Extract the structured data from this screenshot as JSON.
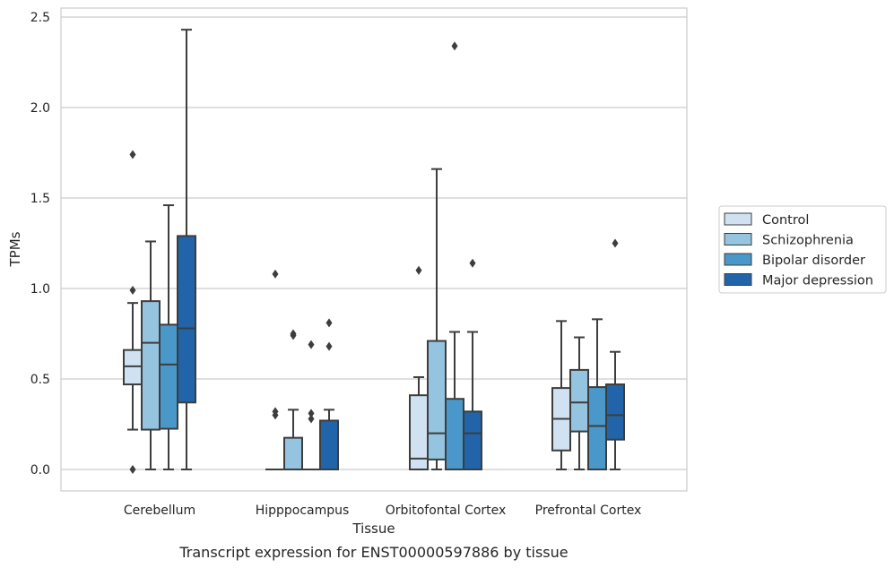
{
  "caption": "Transcript expression for ENST00000597886 by tissue",
  "chart_data": {
    "type": "box",
    "xlabel": "Tissue",
    "ylabel": "TPMs",
    "ylim": [
      -0.12,
      2.56
    ],
    "yticks": [
      "0.0",
      "0.5",
      "1.0",
      "1.5",
      "2.0",
      "2.5"
    ],
    "grid": "horizontal",
    "legend_position": "right",
    "categories": [
      "Cerebellum",
      "Hipppocampus",
      "Orbitofontal Cortex",
      "Prefrontal Cortex"
    ],
    "series": [
      {
        "name": "Control",
        "color": "#d0e1f2",
        "boxes": [
          {
            "q1": 0.47,
            "median": 0.57,
            "q3": 0.66,
            "whisker_low": 0.22,
            "whisker_high": 0.92,
            "outliers": [
              1.74,
              0.99,
              0.0
            ]
          },
          {
            "q1": 0.0,
            "median": 0.0,
            "q3": 0.0,
            "whisker_low": 0.0,
            "whisker_high": 0.0,
            "outliers": [
              0.3,
              0.32,
              1.08
            ]
          },
          {
            "q1": 0.0,
            "median": 0.06,
            "q3": 0.41,
            "whisker_low": 0.0,
            "whisker_high": 0.51,
            "outliers": [
              1.1
            ]
          },
          {
            "q1": 0.105,
            "median": 0.28,
            "q3": 0.45,
            "whisker_low": 0.0,
            "whisker_high": 0.82,
            "outliers": []
          }
        ]
      },
      {
        "name": "Schizophrenia",
        "color": "#94c4df",
        "boxes": [
          {
            "q1": 0.22,
            "median": 0.7,
            "q3": 0.93,
            "whisker_low": 0.0,
            "whisker_high": 1.26,
            "outliers": []
          },
          {
            "q1": 0.0,
            "median": 0.0,
            "q3": 0.175,
            "whisker_low": 0.0,
            "whisker_high": 0.33,
            "outliers": [
              0.75,
              0.74
            ]
          },
          {
            "q1": 0.055,
            "median": 0.2,
            "q3": 0.71,
            "whisker_low": 0.0,
            "whisker_high": 1.66,
            "outliers": []
          },
          {
            "q1": 0.21,
            "median": 0.37,
            "q3": 0.55,
            "whisker_low": 0.0,
            "whisker_high": 0.73,
            "outliers": []
          }
        ]
      },
      {
        "name": "Bipolar disorder",
        "color": "#4a98c9",
        "boxes": [
          {
            "q1": 0.225,
            "median": 0.58,
            "q3": 0.8,
            "whisker_low": 0.0,
            "whisker_high": 1.46,
            "outliers": []
          },
          {
            "q1": 0.0,
            "median": 0.0,
            "q3": 0.0,
            "whisker_low": 0.0,
            "whisker_high": 0.0,
            "outliers": [
              0.28,
              0.31,
              0.69
            ]
          },
          {
            "q1": 0.0,
            "median": 0.0,
            "q3": 0.39,
            "whisker_low": 0.0,
            "whisker_high": 0.76,
            "outliers": [
              2.34
            ]
          },
          {
            "q1": 0.0,
            "median": 0.24,
            "q3": 0.455,
            "whisker_low": 0.0,
            "whisker_high": 0.83,
            "outliers": []
          }
        ]
      },
      {
        "name": "Major depression",
        "color": "#2264a9",
        "boxes": [
          {
            "q1": 0.37,
            "median": 0.78,
            "q3": 1.29,
            "whisker_low": 0.0,
            "whisker_high": 2.43,
            "outliers": []
          },
          {
            "q1": 0.0,
            "median": 0.0,
            "q3": 0.27,
            "whisker_low": 0.0,
            "whisker_high": 0.33,
            "outliers": [
              0.68,
              0.81
            ]
          },
          {
            "q1": 0.0,
            "median": 0.2,
            "q3": 0.32,
            "whisker_low": 0.0,
            "whisker_high": 0.76,
            "outliers": [
              1.14
            ]
          },
          {
            "q1": 0.165,
            "median": 0.3,
            "q3": 0.47,
            "whisker_low": 0.0,
            "whisker_high": 0.65,
            "outliers": [
              1.25
            ]
          }
        ]
      }
    ]
  }
}
